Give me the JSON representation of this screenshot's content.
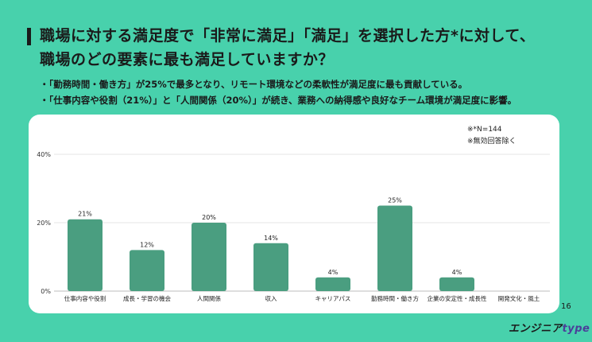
{
  "header": {
    "title_line1": "職場に対する満足度で「非常に満足」「満足」を選択した方*に対して、",
    "title_line2": "職場のどの要素に最も満足していますか？"
  },
  "bullets": [
    "・「勤務時間・働き方」が25%で最多となり、リモート環境などの柔軟性が満足度に最も貢献している。",
    "・「仕事内容や役割（21%）」と「人間関係（20%）」が続き、業務への納得感や良好なチーム環境が満足度に影響。"
  ],
  "notes": {
    "n": "※*N=144",
    "excluded": "※無効回答除く"
  },
  "chart_data": {
    "type": "bar",
    "categories": [
      "仕事内容や役割",
      "成長・学習の機会",
      "人間関係",
      "収入",
      "キャリアパス",
      "勤務時間・働き方",
      "企業の安定性・成長性",
      "開発文化・風土"
    ],
    "values": [
      21,
      12,
      20,
      14,
      4,
      25,
      4,
      null
    ],
    "value_labels": [
      "21%",
      "12%",
      "20%",
      "14%",
      "4%",
      "25%",
      "4%",
      ""
    ],
    "yticks": [
      "0%",
      "20%",
      "40%"
    ],
    "ylim": [
      0,
      40
    ],
    "grid": true,
    "bar_color": "#4a9e80"
  },
  "footer": {
    "page_number": "16",
    "logo_main": "エンジニア",
    "logo_sub": "type"
  }
}
